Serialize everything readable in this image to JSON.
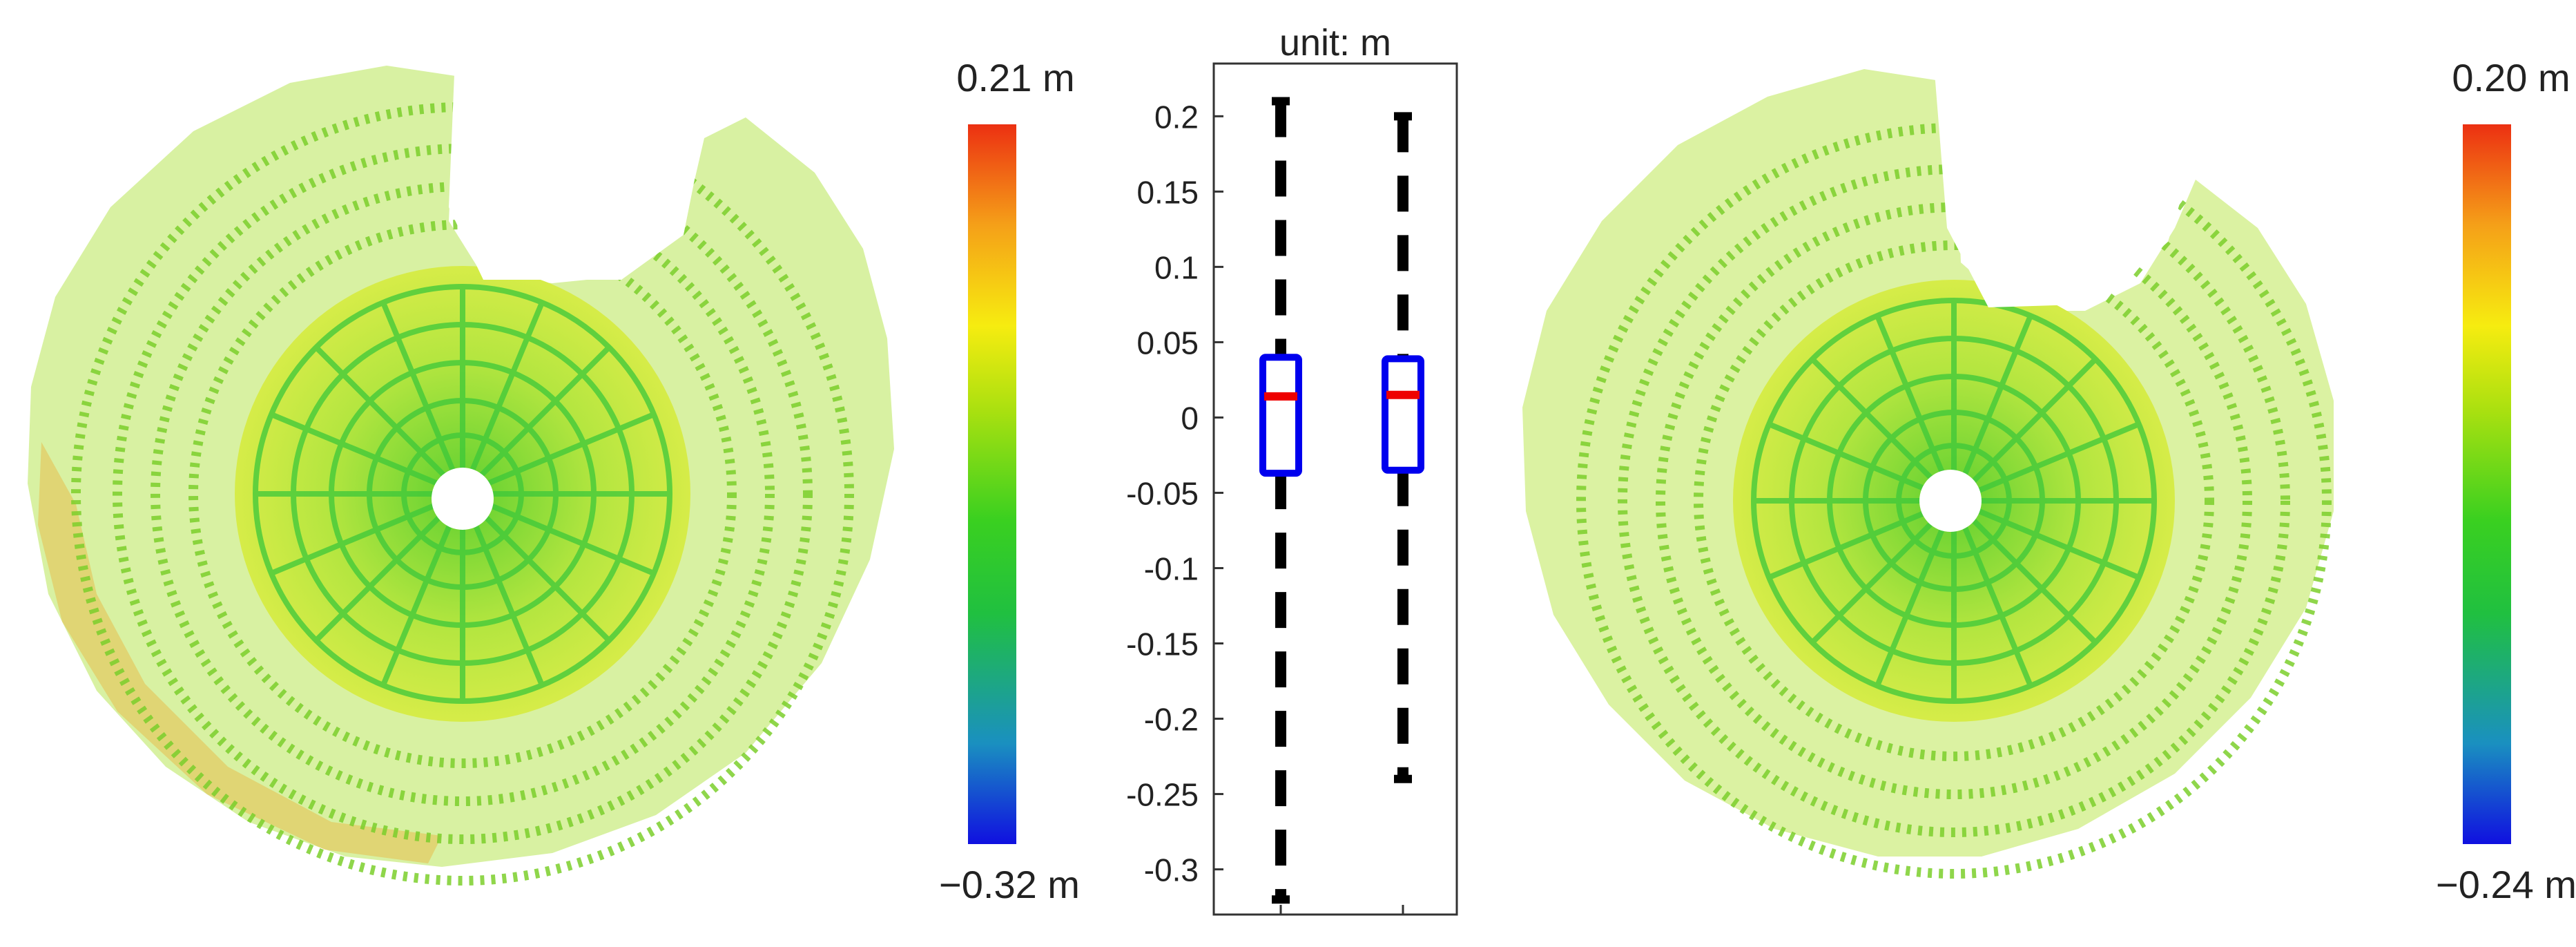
{
  "chart_data": [
    {
      "panel": "left",
      "type": "heatmap",
      "description_units": "m",
      "colorbar": {
        "max_label": "0.21 m",
        "min_label": "−0.32 m",
        "max": 0.21,
        "min": -0.32,
        "colormap": [
          "#1010e0",
          "#1a90c0",
          "#20c040",
          "#3ad020",
          "#a8e010",
          "#f6ec10",
          "#f5a018",
          "#ec3012"
        ]
      }
    },
    {
      "panel": "center",
      "type": "box",
      "title": "unit: m",
      "ylim": [
        -0.33,
        0.235
      ],
      "yticks": [
        0.2,
        0.15,
        0.1,
        0.05,
        0,
        -0.05,
        -0.1,
        -0.15,
        -0.2,
        -0.25,
        -0.3
      ],
      "ytick_labels": [
        "0.2",
        "0.15",
        "0.1",
        "0.05",
        "0",
        "-0.05",
        "-0.1",
        "-0.15",
        "-0.2",
        "-0.25",
        "-0.3"
      ],
      "categories": [
        "",
        ""
      ],
      "series": [
        {
          "name": "left",
          "q1": -0.037,
          "median": 0.014,
          "q3": 0.04,
          "whisker_low": -0.32,
          "whisker_high": 0.21
        },
        {
          "name": "right",
          "q1": -0.035,
          "median": 0.015,
          "q3": 0.039,
          "whisker_low": -0.24,
          "whisker_high": 0.2
        }
      ],
      "colors": {
        "box": "#0000ee",
        "median": "#ee0000",
        "whisker": "#000000"
      }
    },
    {
      "panel": "right",
      "type": "heatmap",
      "description_units": "m",
      "colorbar": {
        "max_label": "0.20 m",
        "min_label": "−0.24 m",
        "max": 0.2,
        "min": -0.24,
        "colormap": [
          "#1010e0",
          "#1a90c0",
          "#20c040",
          "#3ad020",
          "#a8e010",
          "#f6ec10",
          "#f5a018",
          "#ec3012"
        ]
      }
    }
  ]
}
